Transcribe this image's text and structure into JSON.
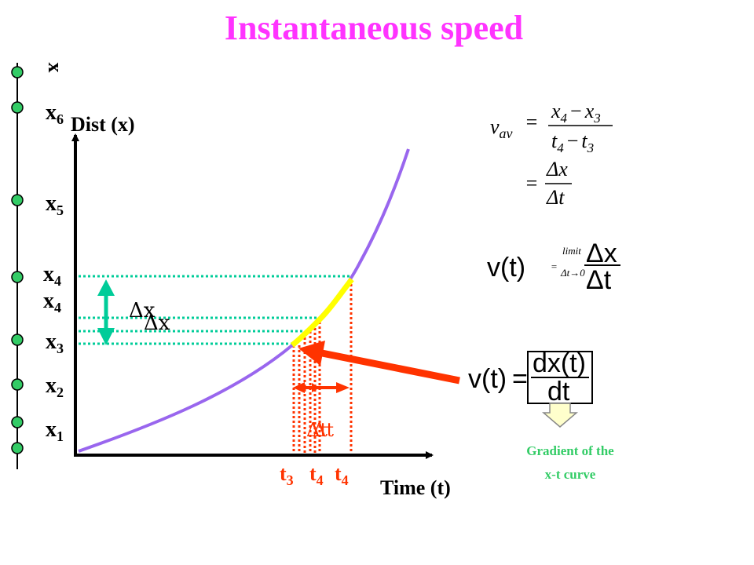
{
  "title": "Instantaneous speed",
  "x_axis_letter": "x",
  "position_labels": [
    {
      "base": "x",
      "sub": "6"
    },
    {
      "base": "x",
      "sub": "5"
    },
    {
      "base": "x",
      "sub": "4"
    },
    {
      "base": "x",
      "sub": "4"
    },
    {
      "base": "x",
      "sub": "3"
    },
    {
      "base": "x",
      "sub": "2"
    },
    {
      "base": "x",
      "sub": "1"
    }
  ],
  "graph": {
    "y_axis_label": "Dist (x)",
    "x_axis_label": "Time (t)",
    "delta_x": [
      "Δx",
      "Δx"
    ],
    "delta_t": [
      "Δt",
      "Δt"
    ],
    "time_labels": [
      {
        "base": "t",
        "sub": "3"
      },
      {
        "base": "t",
        "sub": "4"
      },
      {
        "base": "t",
        "sub": "4"
      }
    ]
  },
  "formulas": {
    "avg": {
      "lhs_base": "v",
      "lhs_sub": "av",
      "eq": "=",
      "num": {
        "a": "x",
        "a_sub": "4",
        "op": "−",
        "b": "x",
        "b_sub": "3"
      },
      "den": {
        "a": "t",
        "a_sub": "4",
        "op": "−",
        "b": "t",
        "b_sub": "3"
      },
      "eq2": "=",
      "num2": "Δx",
      "den2": "Δt"
    },
    "limit": {
      "lhs": "v(t)",
      "eq": "=",
      "word": "limit",
      "cond": "Δt→0",
      "num": "Δx",
      "den": "Δt"
    },
    "derivative": {
      "lhs": "v(t)",
      "eq": "=",
      "num": "dx(t)",
      "den": "dt"
    }
  },
  "caption": [
    "Gradient of the",
    "x-t curve"
  ],
  "colors": {
    "title": "#ff33ff",
    "curve": "#9966ee",
    "highlight": "#ffff00",
    "teal": "#00cc99",
    "red": "#ff3300",
    "point_fill": "#33cc66"
  }
}
